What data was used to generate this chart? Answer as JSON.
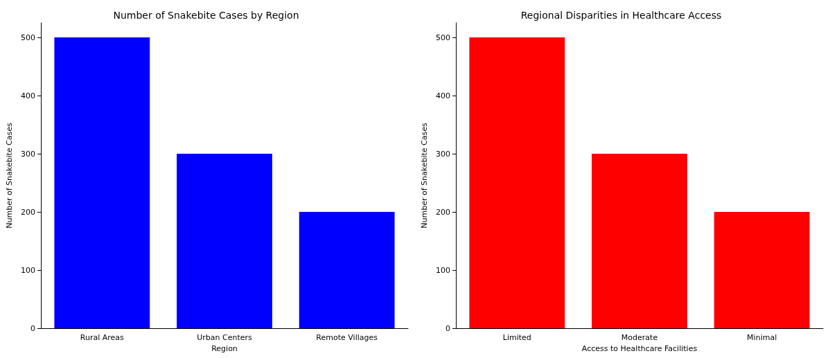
{
  "chart_data": [
    {
      "type": "bar",
      "title": "Number of Snakebite Cases by Region",
      "xlabel": "Region",
      "ylabel": "Number of Snakebite Cases",
      "categories": [
        "Rural Areas",
        "Urban Centers",
        "Remote Villages"
      ],
      "values": [
        500,
        300,
        200
      ],
      "color": "#0000ff",
      "ylim": [
        0,
        525
      ],
      "yticks": [
        0,
        100,
        200,
        300,
        400,
        500
      ],
      "grid": false
    },
    {
      "type": "bar",
      "title": "Regional Disparities in Healthcare Access",
      "xlabel": "Access to Healthcare Facilities",
      "ylabel": "Number of Snakebite Cases",
      "categories": [
        "Limited",
        "Moderate",
        "Minimal"
      ],
      "values": [
        500,
        300,
        200
      ],
      "color": "#ff0000",
      "ylim": [
        0,
        525
      ],
      "yticks": [
        0,
        100,
        200,
        300,
        400,
        500
      ],
      "grid": false
    }
  ]
}
